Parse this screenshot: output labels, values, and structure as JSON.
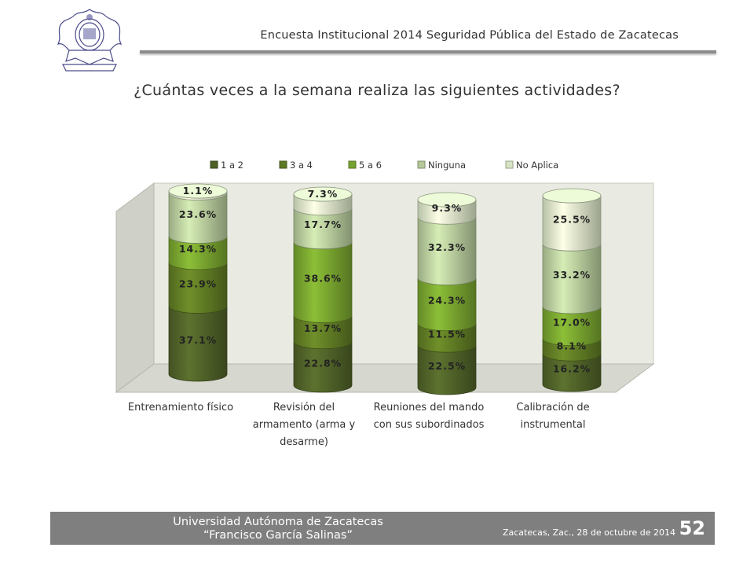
{
  "header": {
    "title": "Encuesta Institucional 2014 Seguridad Pública del Estado de Zacatecas"
  },
  "question": "¿Cuántas veces a la semana realiza las siguientes actividades?",
  "chart_data": {
    "type": "bar",
    "stacked": true,
    "style": "3d-cylinder",
    "legend_position": "top",
    "categories_lines": [
      [
        "Entrenamiento físico"
      ],
      [
        "Revisión del",
        "armamento (arma y",
        "desarme)"
      ],
      [
        "Reuniones del mando",
        "con sus subordinados"
      ],
      [
        "Calibración de",
        "instrumental"
      ]
    ],
    "categories": [
      "Entrenamiento físico",
      "Revisión del armamento (arma y desarme)",
      "Reuniones del mando con sus subordinados",
      "Calibración de instrumental"
    ],
    "series": [
      {
        "name": "1 a 2",
        "values": [
          37.1,
          22.8,
          22.5,
          16.2
        ],
        "labels": [
          "37.1%",
          "22.8%",
          "22.5%",
          "16.2%"
        ],
        "color": "#4f6128"
      },
      {
        "name": "3 a 4",
        "values": [
          23.9,
          13.7,
          11.5,
          8.1
        ],
        "labels": [
          "23.9%",
          "13.7%",
          "11.5%",
          "8.1%"
        ],
        "color": "#5f7a24"
      },
      {
        "name": "5 a 6",
        "values": [
          14.3,
          38.6,
          24.3,
          17.0
        ],
        "labels": [
          "14.3%",
          "38.6%",
          "24.3%",
          "17.0%"
        ],
        "color": "#77a22f"
      },
      {
        "name": "Ninguna",
        "values": [
          23.6,
          17.7,
          32.3,
          33.2
        ],
        "labels": [
          "23.6%",
          "17.7%",
          "32.3%",
          "33.2%"
        ],
        "color": "#b5c99a"
      },
      {
        "name": "No Aplica",
        "values": [
          1.1,
          7.3,
          9.3,
          25.5
        ],
        "labels": [
          "1.1%",
          "7.3%",
          "9.3%",
          "25.5%"
        ],
        "color": "#d7e4c4"
      }
    ],
    "ylim": [
      0,
      100
    ]
  },
  "footer": {
    "university": "Universidad Autónoma de Zacatecas",
    "university_sub": "“Francisco García Salinas”",
    "date": "Zacatecas, Zac., 28 de octubre de 2014",
    "page": "52"
  },
  "colors": {
    "footer_bg": "#7f7f7f",
    "wall": "#e9ebe3",
    "logo": "#4a4a8a"
  },
  "logo": {
    "icon": "university-seal-icon"
  }
}
